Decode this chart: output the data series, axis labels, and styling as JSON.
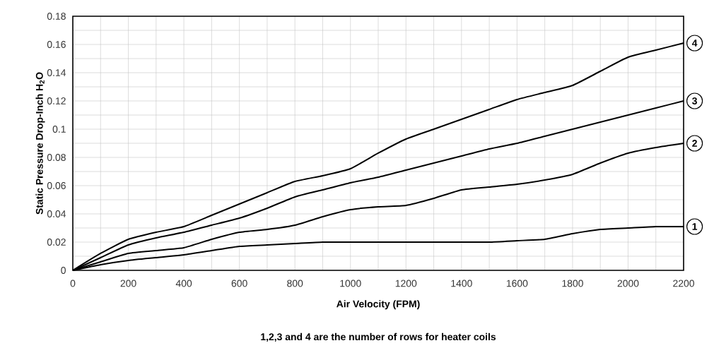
{
  "chart_data": {
    "type": "line",
    "xlabel": "Air Velocity (FPM)",
    "ylabel": "Static Pressure Drop-Inch H$_{2}$O",
    "annotations": [
      "1,2,3 and 4 are the number of rows for heater coils"
    ],
    "x": [
      0,
      100,
      200,
      300,
      400,
      500,
      600,
      700,
      800,
      900,
      1000,
      1100,
      1200,
      1300,
      1400,
      1500,
      1600,
      1700,
      1800,
      1900,
      2000,
      2100,
      2200
    ],
    "series": [
      {
        "name": "1",
        "color": "#000000",
        "values": [
          0,
          0.004,
          0.007,
          0.009,
          0.011,
          0.014,
          0.017,
          0.018,
          0.019,
          0.02,
          0.02,
          0.02,
          0.02,
          0.02,
          0.02,
          0.02,
          0.021,
          0.022,
          0.026,
          0.029,
          0.03,
          0.031,
          0.031
        ]
      },
      {
        "name": "2",
        "color": "#000000",
        "values": [
          0,
          0.006,
          0.012,
          0.014,
          0.016,
          0.022,
          0.027,
          0.029,
          0.032,
          0.038,
          0.043,
          0.045,
          0.046,
          0.051,
          0.057,
          0.059,
          0.061,
          0.064,
          0.068,
          0.076,
          0.083,
          0.087,
          0.09
        ]
      },
      {
        "name": "3",
        "color": "#000000",
        "values": [
          0,
          0.009,
          0.018,
          0.023,
          0.027,
          0.032,
          0.037,
          0.044,
          0.052,
          0.057,
          0.062,
          0.066,
          0.071,
          0.076,
          0.081,
          0.086,
          0.09,
          0.095,
          0.1,
          0.105,
          0.11,
          0.115,
          0.12
        ]
      },
      {
        "name": "4",
        "color": "#000000",
        "values": [
          0,
          0.012,
          0.022,
          0.027,
          0.031,
          0.039,
          0.047,
          0.055,
          0.063,
          0.067,
          0.072,
          0.083,
          0.093,
          0.1,
          0.107,
          0.114,
          0.121,
          0.126,
          0.131,
          0.141,
          0.151,
          0.156,
          0.161
        ]
      }
    ],
    "xlim": [
      0,
      2200
    ],
    "ylim": [
      0,
      0.18
    ],
    "xticks": [
      0,
      {
        "value": 100,
        "label": null
      },
      200,
      {
        "value": 300,
        "label": null
      },
      400,
      {
        "value": 500,
        "label": null
      },
      600,
      {
        "value": 700,
        "label": null
      },
      800,
      {
        "value": 900,
        "label": null
      },
      1000,
      {
        "value": 1100,
        "label": null
      },
      1200,
      {
        "value": 1300,
        "label": null
      },
      1400,
      {
        "value": 1500,
        "label": null
      },
      1600,
      {
        "value": 1700,
        "label": null
      },
      1800,
      {
        "value": 1900,
        "label": null
      },
      2000,
      {
        "value": 2100,
        "label": null
      },
      2200
    ],
    "yticks": [
      0,
      {
        "value": 0.01,
        "label": null
      },
      0.02,
      {
        "value": 0.03,
        "label": null
      },
      0.04,
      {
        "value": 0.05,
        "label": null
      },
      0.06,
      {
        "value": 0.07,
        "label": null
      },
      0.08,
      {
        "value": 0.09,
        "label": null
      },
      0.1,
      {
        "value": 0.11,
        "label": null
      },
      0.12,
      {
        "value": 0.13,
        "label": null
      },
      0.14,
      {
        "value": 0.15,
        "label": null
      },
      0.16,
      {
        "value": 0.17,
        "label": null
      },
      0.18
    ],
    "grid": true,
    "legend": "right",
    "marker": "none",
    "line_style": "solid"
  }
}
